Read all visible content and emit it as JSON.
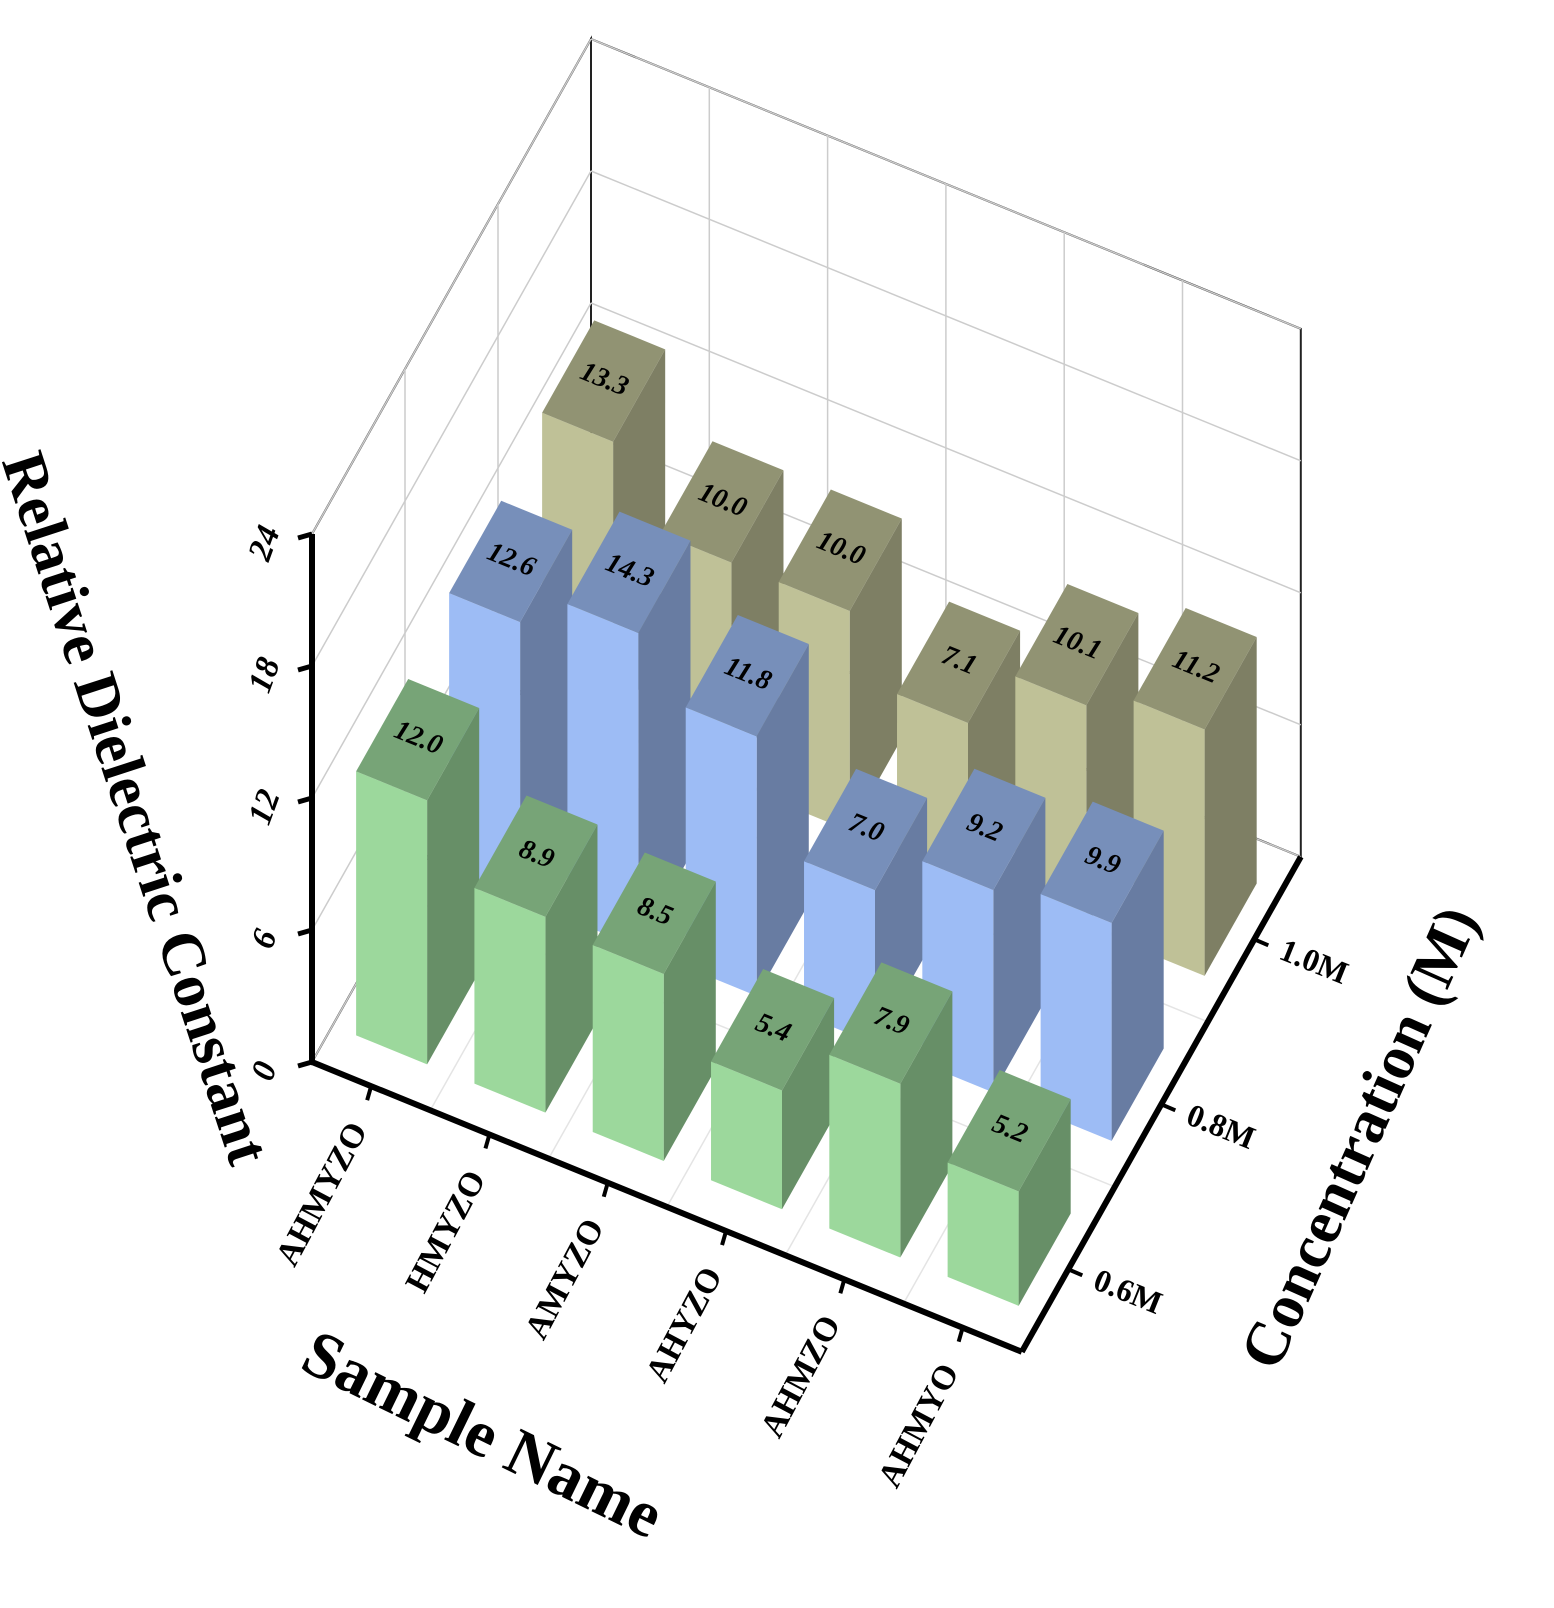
{
  "chart_data": {
    "type": "bar3d",
    "x_label": "Sample Name",
    "y_label": "Concentration (M)",
    "z_label": "Relative Dielectric Constant",
    "categories": [
      "AHMYZO",
      "HMYZO",
      "AMYZO",
      "AHYZO",
      "AHMZO",
      "AHMYO"
    ],
    "series": [
      {
        "name": "0.6M",
        "color": "#9cd89c",
        "values": [
          12.0,
          8.9,
          8.5,
          5.4,
          7.9,
          5.2
        ],
        "value_labels": [
          "12.0",
          "8.9",
          "8.5",
          "5.4",
          "7.9",
          "5.2"
        ]
      },
      {
        "name": "0.8M",
        "color": "#9dbcf5",
        "values": [
          12.6,
          14.3,
          11.8,
          7.0,
          9.2,
          9.9
        ],
        "value_labels": [
          "12.6",
          "14.3",
          "11.8",
          "7.0",
          "9.2",
          "9.9"
        ]
      },
      {
        "name": "1.0M",
        "color": "#bfc197",
        "values": [
          13.3,
          10.0,
          10.0,
          7.1,
          10.1,
          11.2
        ],
        "value_labels": [
          "13.3",
          "10.0",
          "10.0",
          "7.1",
          "10.1",
          "11.2"
        ]
      }
    ],
    "zlim": [
      0,
      24
    ],
    "zticks": [
      0,
      6,
      12,
      18,
      24
    ],
    "grid": true
  }
}
